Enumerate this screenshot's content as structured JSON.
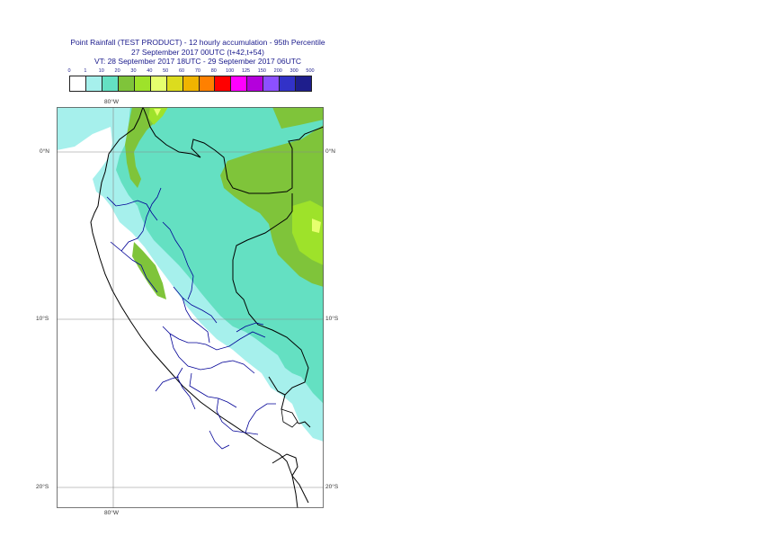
{
  "header": {
    "title": "Point Rainfall (TEST PRODUCT) - 12 hourly accumulation - 95th Percentile",
    "run": "27 September 2017 00UTC (t+42,t+54)",
    "valid": "VT: 28 September 2017 18UTC - 29 September 2017 06UTC"
  },
  "legend": {
    "labels": [
      "0",
      "1",
      "10",
      "20",
      "30",
      "40",
      "50",
      "60",
      "70",
      "80",
      "100",
      "125",
      "150",
      "200",
      "300",
      "500"
    ],
    "colors": [
      "#ffffff",
      "#a6f0ec",
      "#64e0c2",
      "#7fc43a",
      "#9ee22a",
      "#e6ff6e",
      "#dcdc1e",
      "#f0b400",
      "#ff8000",
      "#ff0000",
      "#ff00ff",
      "#b400dc",
      "#8c50ff",
      "#3232c8",
      "#1e1e8c"
    ]
  },
  "axes": {
    "top_lon": "80°W",
    "bottom_lon": "80°W",
    "lat_labels": [
      "0°N",
      "10°S",
      "20°S"
    ]
  },
  "colors": {
    "title_text": "#1a1a8c",
    "coast": "#000000",
    "regions": "#000096",
    "grid": "#888888"
  }
}
